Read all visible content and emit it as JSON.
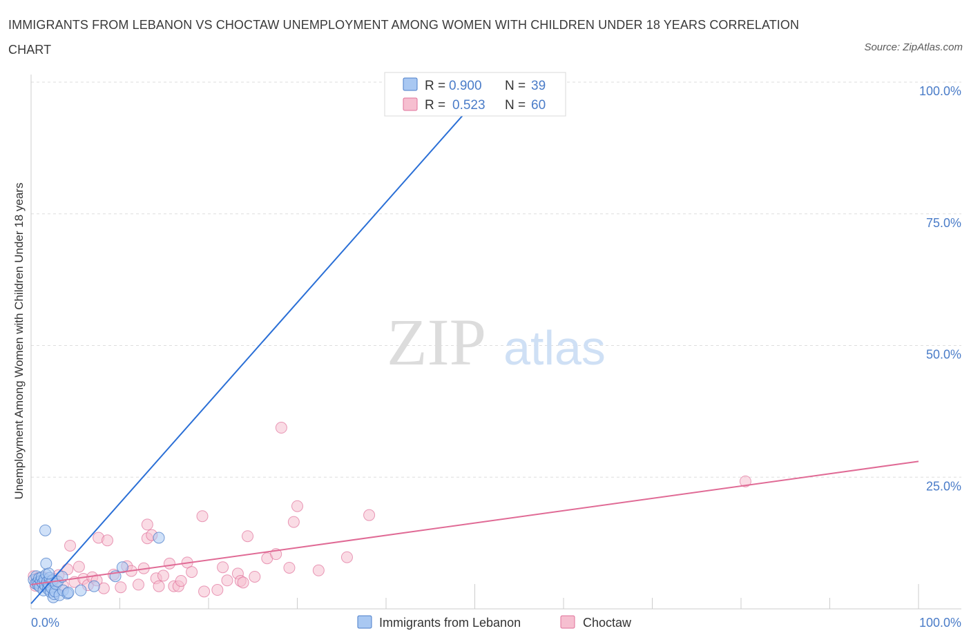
{
  "title": "IMMIGRANTS FROM LEBANON VS CHOCTAW UNEMPLOYMENT AMONG WOMEN WITH CHILDREN UNDER 18 YEARS CORRELATION CHART",
  "source": "Source: ZipAtlas.com",
  "watermark": {
    "zip": "ZIP",
    "atlas": "atlas"
  },
  "colors": {
    "blue": "#4a7cc8",
    "blue_fill": "#a9c8f2",
    "blue_line": "#2a6fd6",
    "pink": "#e0709a",
    "pink_fill": "#f6bfd0",
    "pink_line": "#e06a95",
    "grid": "#dddddd"
  },
  "stats": {
    "r_label": "R =",
    "n_label": "N =",
    "blue": {
      "r": "0.900",
      "n": "39"
    },
    "pink": {
      "r": "0.523",
      "n": "60"
    }
  },
  "chart_data": {
    "type": "scatter",
    "title": "IMMIGRANTS FROM LEBANON VS CHOCTAW UNEMPLOYMENT AMONG WOMEN WITH CHILDREN UNDER 18 YEARS CORRELATION CHART",
    "xlabel": "",
    "ylabel": "Unemployment Among Women with Children Under 18 years",
    "xlim": [
      0,
      100
    ],
    "ylim": [
      0,
      100
    ],
    "x_tick_labels": [
      "0.0%",
      "100.0%"
    ],
    "y_tick_labels": [
      "25.0%",
      "50.0%",
      "75.0%",
      "100.0%"
    ],
    "y_ticks": [
      25,
      50,
      75,
      100
    ],
    "grid": true,
    "legend_position": "bottom-center",
    "series": [
      {
        "name": "Immigrants from Lebanon",
        "color": "blue",
        "r": 0.9,
        "n": 39,
        "trend": {
          "x1": 0,
          "y1": 1.0,
          "x2": 49.8,
          "y2": 95.9
        },
        "points": [
          [
            0.3,
            5.5
          ],
          [
            0.5,
            4.8
          ],
          [
            0.6,
            6.2
          ],
          [
            0.7,
            5.0
          ],
          [
            0.8,
            4.5
          ],
          [
            0.9,
            5.8
          ],
          [
            1.0,
            4.2
          ],
          [
            1.1,
            5.3
          ],
          [
            1.2,
            6.0
          ],
          [
            1.3,
            4.9
          ],
          [
            1.4,
            3.5
          ],
          [
            1.5,
            5.6
          ],
          [
            1.6,
            4.4
          ],
          [
            1.7,
            6.5
          ],
          [
            1.8,
            5.1
          ],
          [
            1.9,
            3.8
          ],
          [
            2.0,
            4.6
          ],
          [
            2.1,
            5.9
          ],
          [
            2.2,
            3.2
          ],
          [
            2.3,
            4.0
          ],
          [
            2.4,
            5.4
          ],
          [
            2.5,
            2.2
          ],
          [
            2.6,
            2.8
          ],
          [
            2.7,
            3.3
          ],
          [
            2.8,
            4.7
          ],
          [
            3.0,
            5.2
          ],
          [
            3.2,
            2.6
          ],
          [
            3.5,
            6.1
          ],
          [
            1.6,
            14.9
          ],
          [
            1.7,
            8.6
          ],
          [
            2.0,
            6.7
          ],
          [
            3.6,
            3.5
          ],
          [
            4.1,
            2.9
          ],
          [
            4.2,
            3.1
          ],
          [
            5.6,
            3.5
          ],
          [
            7.1,
            4.3
          ],
          [
            9.5,
            6.2
          ],
          [
            10.3,
            7.9
          ],
          [
            14.4,
            13.5
          ]
        ]
      },
      {
        "name": "Choctaw",
        "color": "pink",
        "r": 0.523,
        "n": 60,
        "trend": {
          "x1": 0,
          "y1": 4.6,
          "x2": 100,
          "y2": 28.0
        },
        "points": [
          [
            0.3,
            6.2
          ],
          [
            0.5,
            4.4
          ],
          [
            0.7,
            5.8
          ],
          [
            0.9,
            5.1
          ],
          [
            1.1,
            4.9
          ],
          [
            1.4,
            6.0
          ],
          [
            1.8,
            5.5
          ],
          [
            2.2,
            4.6
          ],
          [
            2.6,
            5.7
          ],
          [
            3.1,
            6.4
          ],
          [
            3.6,
            4.4
          ],
          [
            4.1,
            7.5
          ],
          [
            4.4,
            12.0
          ],
          [
            4.9,
            5.1
          ],
          [
            5.4,
            8.0
          ],
          [
            5.9,
            5.7
          ],
          [
            6.4,
            4.5
          ],
          [
            6.9,
            6.0
          ],
          [
            7.4,
            5.4
          ],
          [
            7.6,
            13.5
          ],
          [
            8.2,
            3.9
          ],
          [
            8.6,
            13.0
          ],
          [
            9.3,
            6.5
          ],
          [
            10.1,
            4.1
          ],
          [
            10.8,
            8.1
          ],
          [
            11.3,
            7.2
          ],
          [
            12.1,
            4.6
          ],
          [
            12.7,
            7.7
          ],
          [
            13.1,
            13.4
          ],
          [
            13.1,
            16.0
          ],
          [
            13.6,
            14.0
          ],
          [
            14.1,
            5.8
          ],
          [
            14.4,
            4.3
          ],
          [
            14.9,
            6.3
          ],
          [
            15.6,
            8.6
          ],
          [
            16.1,
            4.3
          ],
          [
            16.6,
            4.3
          ],
          [
            16.9,
            5.3
          ],
          [
            17.6,
            8.8
          ],
          [
            18.1,
            7.0
          ],
          [
            19.5,
            3.3
          ],
          [
            19.3,
            17.6
          ],
          [
            21.0,
            3.6
          ],
          [
            21.6,
            7.9
          ],
          [
            22.1,
            5.4
          ],
          [
            23.3,
            6.7
          ],
          [
            23.6,
            5.3
          ],
          [
            23.9,
            5.0
          ],
          [
            24.4,
            13.8
          ],
          [
            25.2,
            6.1
          ],
          [
            26.6,
            9.6
          ],
          [
            27.6,
            10.4
          ],
          [
            28.2,
            34.4
          ],
          [
            29.1,
            7.8
          ],
          [
            29.6,
            16.5
          ],
          [
            30.0,
            19.5
          ],
          [
            32.4,
            7.3
          ],
          [
            35.6,
            9.8
          ],
          [
            38.1,
            17.8
          ],
          [
            80.5,
            24.2
          ]
        ]
      }
    ]
  },
  "legend": {
    "items": [
      {
        "label": "Immigrants from Lebanon",
        "color": "blue"
      },
      {
        "label": "Choctaw",
        "color": "pink"
      }
    ]
  }
}
